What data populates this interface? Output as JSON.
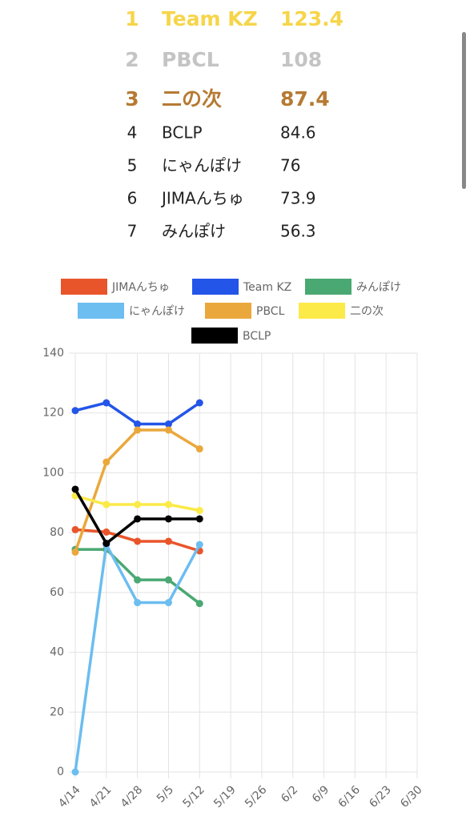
{
  "ranking": [
    {
      "rank": "1",
      "name": "Team KZ",
      "score": "123.4",
      "color": "#f6d54a"
    },
    {
      "rank": "2",
      "name": "PBCL",
      "score": "108",
      "color": "#c4c4c4"
    },
    {
      "rank": "3",
      "name": "二の次",
      "score": "87.4",
      "color": "#b67a33"
    },
    {
      "rank": "4",
      "name": "BCLP",
      "score": "84.6",
      "color": "#222222"
    },
    {
      "rank": "5",
      "name": "にゃんぽけ",
      "score": "76",
      "color": "#222222"
    },
    {
      "rank": "6",
      "name": "JIMAんちゅ",
      "score": "73.9",
      "color": "#222222"
    },
    {
      "rank": "7",
      "name": "みんぽけ",
      "score": "56.3",
      "color": "#222222"
    }
  ],
  "chart_data": {
    "type": "line",
    "categories": [
      "4/14",
      "4/21",
      "4/28",
      "5/5",
      "5/12",
      "5/19",
      "5/26",
      "6/2",
      "6/9",
      "6/16",
      "6/23",
      "6/30"
    ],
    "series": [
      {
        "name": "JIMAんちゅ",
        "color": "#e9552a",
        "values": [
          81,
          80.2,
          77.1,
          77.1,
          73.9,
          null,
          null,
          null,
          null,
          null,
          null,
          null
        ]
      },
      {
        "name": "Team KZ",
        "color": "#2355e8",
        "values": [
          120.8,
          123.4,
          116.3,
          116.3,
          123.4,
          null,
          null,
          null,
          null,
          null,
          null,
          null
        ]
      },
      {
        "name": "みんぽけ",
        "color": "#4aa872",
        "values": [
          74.4,
          74.4,
          64.2,
          64.2,
          56.3,
          null,
          null,
          null,
          null,
          null,
          null,
          null
        ]
      },
      {
        "name": "にゃんぽけ",
        "color": "#6cbdf0",
        "values": [
          0,
          76,
          56.6,
          56.6,
          76,
          null,
          null,
          null,
          null,
          null,
          null,
          null
        ]
      },
      {
        "name": "PBCL",
        "color": "#eaa83c",
        "values": [
          73.5,
          103.6,
          114.3,
          114.3,
          108,
          null,
          null,
          null,
          null,
          null,
          null,
          null
        ]
      },
      {
        "name": "二の次",
        "color": "#fbea47",
        "values": [
          92.3,
          89.4,
          89.4,
          89.4,
          87.4,
          null,
          null,
          null,
          null,
          null,
          null,
          null
        ]
      },
      {
        "name": "BCLP",
        "color": "#000000",
        "values": [
          94.5,
          76.4,
          84.6,
          84.6,
          84.6,
          null,
          null,
          null,
          null,
          null,
          null,
          null
        ]
      }
    ],
    "ylim": [
      0,
      140
    ],
    "yticks": [
      0,
      20,
      40,
      60,
      80,
      100,
      120,
      140
    ],
    "grid": true
  }
}
